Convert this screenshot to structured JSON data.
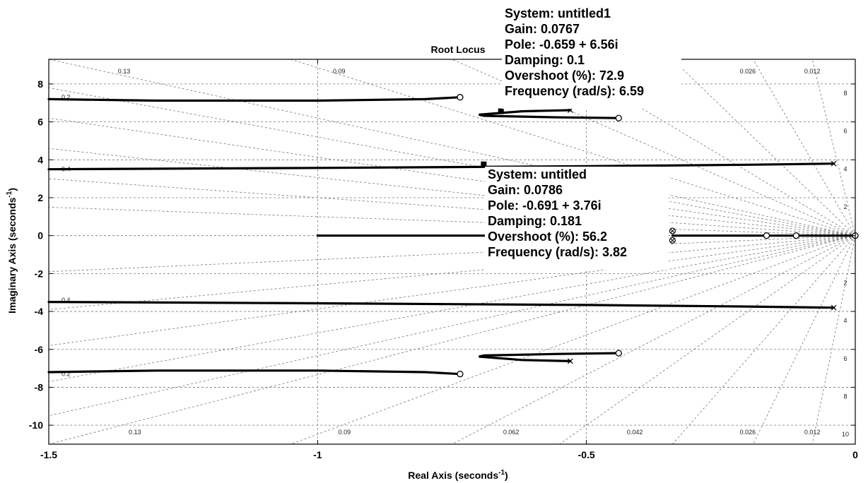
{
  "chart_data": {
    "type": "line",
    "title": "Root Locus",
    "xlabel": "Real Axis (seconds",
    "xlabel_sup": "-1",
    "xlabel_close": ")",
    "ylabel": "Imaginary Axis (seconds",
    "ylabel_sup": "-1",
    "ylabel_close": ")",
    "xlim": [
      -1.5,
      0
    ],
    "ylim": [
      -11,
      9.3
    ],
    "grid": true,
    "x_ticks": [
      {
        "value": -1.5,
        "label": "-1.5"
      },
      {
        "value": -1,
        "label": "-1"
      },
      {
        "value": -0.5,
        "label": "-0.5"
      },
      {
        "value": 0,
        "label": "0"
      }
    ],
    "y_ticks": [
      {
        "value": 8,
        "label": "8"
      },
      {
        "value": 6,
        "label": "6"
      },
      {
        "value": 4,
        "label": "4"
      },
      {
        "value": 2,
        "label": "2"
      },
      {
        "value": 0,
        "label": "0"
      },
      {
        "value": -2,
        "label": "-2"
      },
      {
        "value": -4,
        "label": "-4"
      },
      {
        "value": -6,
        "label": "-6"
      },
      {
        "value": -8,
        "label": "-8"
      },
      {
        "value": -10,
        "label": "-10"
      }
    ],
    "damping_labels": {
      "top": [
        {
          "x": -1.36,
          "text": "0.13"
        },
        {
          "x": -0.96,
          "text": "0.09"
        },
        {
          "x": -0.2,
          "text": "0.026"
        },
        {
          "x": -0.08,
          "text": "0.012"
        }
      ],
      "bottom": [
        {
          "x": -1.34,
          "text": "0.13"
        },
        {
          "x": -0.95,
          "text": "0.09"
        },
        {
          "x": -0.64,
          "text": "0.062"
        },
        {
          "x": -0.41,
          "text": "0.042"
        },
        {
          "x": -0.2,
          "text": "0.026"
        },
        {
          "x": -0.08,
          "text": "0.012"
        }
      ]
    },
    "frequency_labels": [
      {
        "y": 8,
        "text": "8"
      },
      {
        "y": 6,
        "text": "6"
      },
      {
        "y": 4,
        "text": "4"
      },
      {
        "y": 2,
        "text": "2"
      },
      {
        "y": -2,
        "text": "2"
      },
      {
        "y": -4,
        "text": "4"
      },
      {
        "y": -6,
        "text": "6"
      },
      {
        "y": -8,
        "text": "8"
      },
      {
        "y": -10,
        "text": "10"
      }
    ],
    "left_edge_labels": [
      {
        "y": 7.3,
        "text": "0.2"
      },
      {
        "y": 3.5,
        "text": "0.4"
      },
      {
        "y": -3.4,
        "text": "0.4"
      },
      {
        "y": -7.3,
        "text": "0.2"
      }
    ],
    "series": [
      {
        "points": [
          [
            -1.5,
            7.2
          ],
          [
            -1.3,
            7.12
          ],
          [
            -1.0,
            7.12
          ],
          [
            -0.8,
            7.2
          ],
          [
            -0.735,
            7.3
          ]
        ]
      },
      {
        "points": [
          [
            -1.5,
            -7.2
          ],
          [
            -1.3,
            -7.12
          ],
          [
            -1.0,
            -7.12
          ],
          [
            -0.8,
            -7.2
          ],
          [
            -0.735,
            -7.3
          ]
        ]
      },
      {
        "points": [
          [
            -1.5,
            3.5
          ],
          [
            -1.0,
            3.57
          ],
          [
            -0.5,
            3.66
          ],
          [
            -0.2,
            3.74
          ],
          [
            -0.04,
            3.8
          ]
        ]
      },
      {
        "points": [
          [
            -1.5,
            -3.5
          ],
          [
            -1.0,
            -3.57
          ],
          [
            -0.5,
            -3.66
          ],
          [
            -0.2,
            -3.74
          ],
          [
            -0.04,
            -3.8
          ]
        ]
      },
      {
        "points": [
          [
            -0.44,
            6.2
          ],
          [
            -0.55,
            6.24
          ],
          [
            -0.69,
            6.32
          ],
          [
            -0.7,
            6.38
          ],
          [
            -0.62,
            6.56
          ],
          [
            -0.53,
            6.62
          ]
        ]
      },
      {
        "points": [
          [
            -0.44,
            -6.2
          ],
          [
            -0.55,
            -6.24
          ],
          [
            -0.69,
            -6.32
          ],
          [
            -0.7,
            -6.38
          ],
          [
            -0.62,
            -6.56
          ],
          [
            -0.53,
            -6.62
          ]
        ]
      },
      {
        "points": [
          [
            -1.0,
            0
          ],
          [
            -0.5,
            0
          ],
          [
            -0.36,
            0
          ]
        ]
      },
      {
        "points": [
          [
            -0.34,
            0
          ],
          [
            -0.15,
            0
          ],
          [
            -0.03,
            0
          ],
          [
            0,
            0
          ]
        ]
      }
    ],
    "zeros": [
      [
        -0.735,
        7.3
      ],
      [
        -0.735,
        -7.3
      ],
      [
        -0.44,
        6.2
      ],
      [
        -0.44,
        -6.2
      ],
      [
        -0.165,
        0
      ],
      [
        -0.11,
        0
      ],
      [
        0,
        0
      ]
    ],
    "poles": [
      [
        -0.53,
        6.62
      ],
      [
        -0.53,
        -6.62
      ],
      [
        -0.04,
        3.8
      ],
      [
        -0.04,
        -3.8
      ]
    ],
    "double_markers": [
      [
        -0.34,
        0.25
      ],
      [
        -0.34,
        -0.25
      ]
    ],
    "datatips": [
      {
        "anchor": [
          -0.659,
          6.56
        ],
        "lines": [
          "System: untitled1",
          "Gain: 0.0767",
          "Pole: -0.659 + 6.56i",
          "Damping: 0.1",
          "Overshoot (%): 72.9",
          "Frequency (rad/s): 6.59"
        ]
      },
      {
        "anchor": [
          -0.691,
          3.76
        ],
        "lines": [
          "System: untitled",
          "Gain: 0.0786",
          "Pole: -0.691 + 3.76i",
          "Damping: 0.181",
          "Overshoot (%): 56.2",
          "Frequency (rad/s): 3.82"
        ]
      }
    ]
  }
}
